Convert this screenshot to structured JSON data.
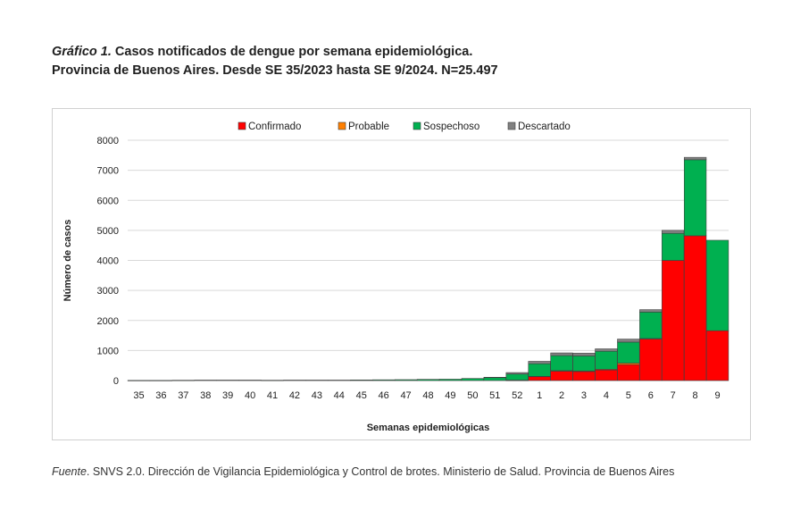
{
  "title": {
    "lead": "Gráfico 1.",
    "line1": "Casos notificados de dengue por semana epidemiológica.",
    "line2": "Provincia de Buenos Aires. Desde SE 35/2023 hasta SE 9/2024. N=25.497"
  },
  "source": {
    "lead": "Fuente",
    "text": ". SNVS 2.0. Dirección de Vigilancia Epidemiológica y Control de brotes. Ministerio de Salud. Provincia de Buenos Aires"
  },
  "chart_data": {
    "type": "bar",
    "stacked": true,
    "title": "",
    "xlabel": "Semanas epidemiológicas",
    "ylabel": "Número de casos",
    "ylim": [
      0,
      8000
    ],
    "yticks": [
      0,
      1000,
      2000,
      3000,
      4000,
      5000,
      6000,
      7000,
      8000
    ],
    "grid": true,
    "legend": "top",
    "categories": [
      "35",
      "36",
      "37",
      "38",
      "39",
      "40",
      "41",
      "42",
      "43",
      "44",
      "45",
      "46",
      "47",
      "48",
      "49",
      "50",
      "51",
      "52",
      "1",
      "2",
      "3",
      "4",
      "5",
      "6",
      "7",
      "8",
      "9"
    ],
    "series": [
      {
        "name": "Confirmado",
        "color": "#ff0000",
        "values": [
          0,
          0,
          0,
          0,
          0,
          0,
          0,
          0,
          0,
          0,
          0,
          0,
          0,
          0,
          0,
          0,
          0,
          10,
          130,
          310,
          300,
          350,
          530,
          1380,
          4000,
          4820,
          1660
        ]
      },
      {
        "name": "Probable",
        "color": "#ff7f00",
        "values": [
          0,
          0,
          0,
          0,
          0,
          0,
          0,
          0,
          0,
          0,
          0,
          0,
          0,
          0,
          0,
          0,
          0,
          5,
          10,
          20,
          20,
          25,
          50,
          20,
          0,
          0,
          0
        ]
      },
      {
        "name": "Sospechoso",
        "color": "#00b050",
        "values": [
          5,
          5,
          10,
          15,
          15,
          15,
          10,
          15,
          15,
          15,
          20,
          25,
          30,
          40,
          45,
          70,
          100,
          200,
          420,
          500,
          500,
          600,
          700,
          880,
          900,
          2530,
          3010
        ]
      },
      {
        "name": "Descartado",
        "color": "#808080",
        "values": [
          0,
          0,
          0,
          0,
          0,
          0,
          0,
          0,
          0,
          0,
          0,
          0,
          0,
          0,
          0,
          0,
          10,
          50,
          80,
          90,
          90,
          80,
          100,
          80,
          100,
          80,
          0
        ]
      }
    ]
  }
}
